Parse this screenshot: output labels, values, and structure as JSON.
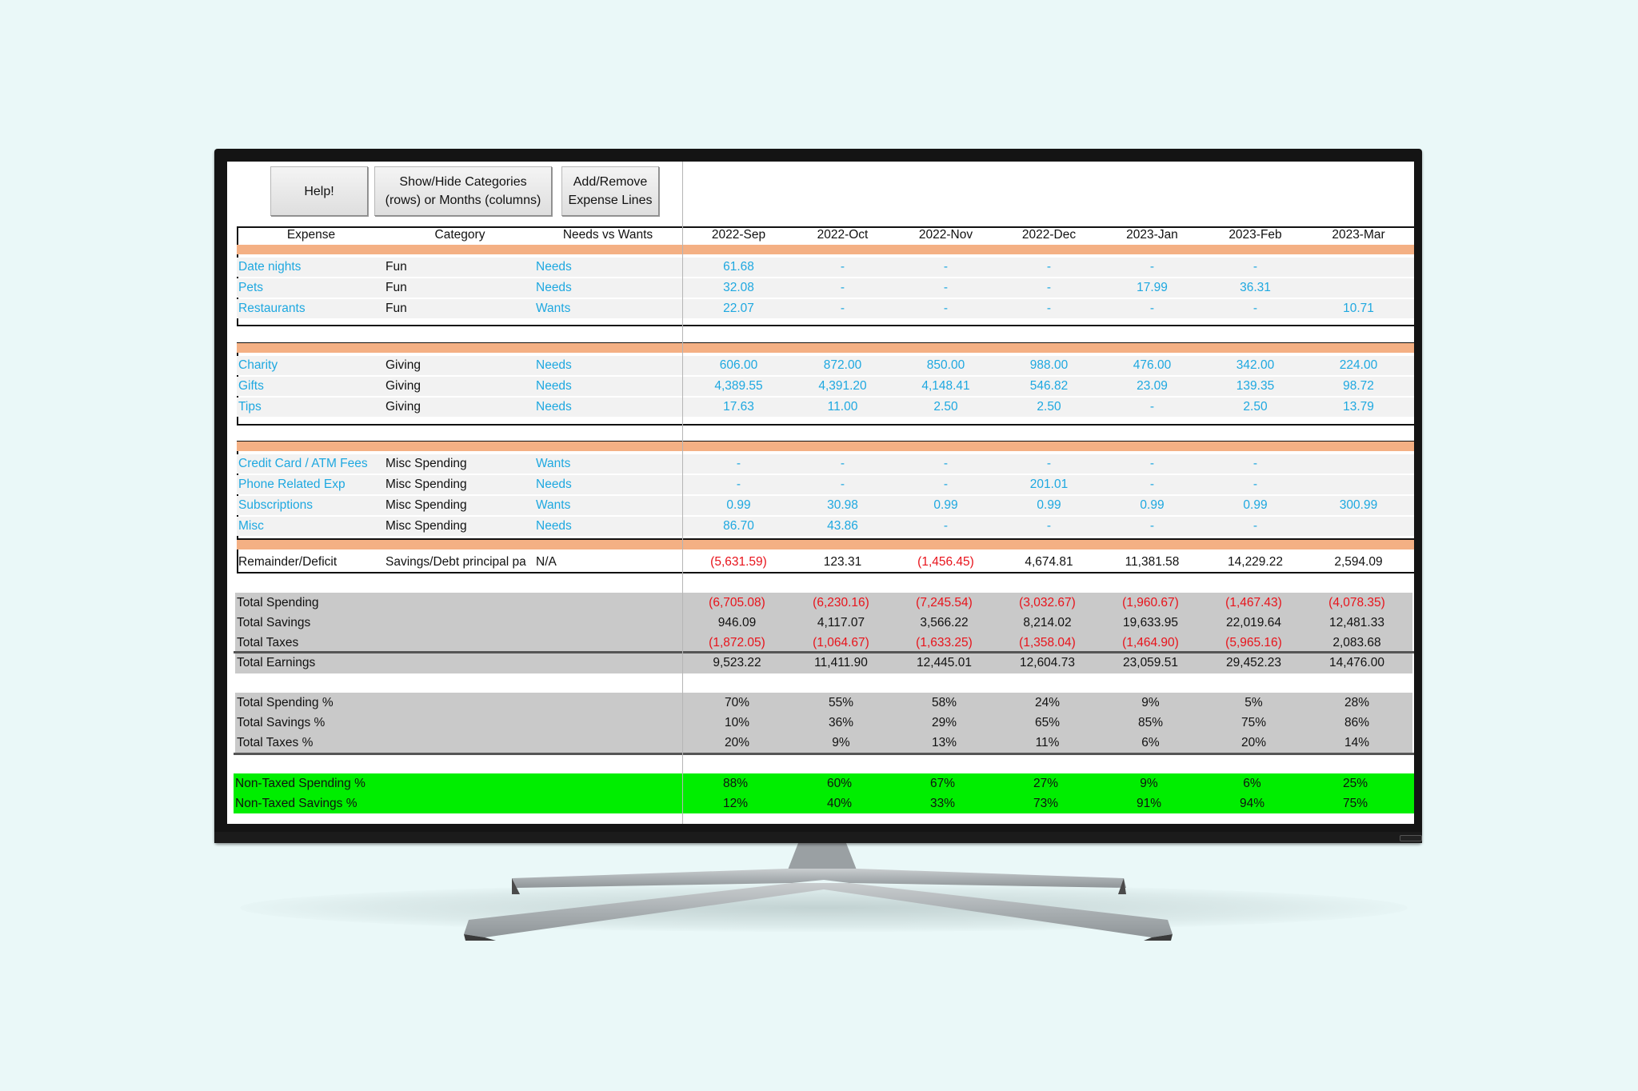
{
  "toolbar": {
    "help_label": "Help!",
    "show_hide_line1": "Show/Hide Categories",
    "show_hide_line2": "(rows) or Months (columns)",
    "add_remove_line1": "Add/Remove",
    "add_remove_line2": "Expense Lines"
  },
  "columns": {
    "expense": "Expense",
    "category": "Category",
    "needs_wants": "Needs vs Wants",
    "months": [
      "2022-Sep",
      "2022-Oct",
      "2022-Nov",
      "2022-Dec",
      "2023-Jan",
      "2023-Feb",
      "2023-Mar"
    ]
  },
  "groups": [
    {
      "rows": [
        {
          "expense": "Date nights",
          "category": "Fun",
          "type": "Needs",
          "values": [
            "61.68",
            "-",
            "-",
            "-",
            "-",
            "-",
            ""
          ]
        },
        {
          "expense": "Pets",
          "category": "Fun",
          "type": "Needs",
          "values": [
            "32.08",
            "-",
            "-",
            "-",
            "17.99",
            "36.31",
            ""
          ]
        },
        {
          "expense": "Restaurants",
          "category": "Fun",
          "type": "Wants",
          "values": [
            "22.07",
            "-",
            "-",
            "-",
            "-",
            "-",
            "10.71"
          ]
        }
      ]
    },
    {
      "rows": [
        {
          "expense": "Charity",
          "category": "Giving",
          "type": "Needs",
          "values": [
            "606.00",
            "872.00",
            "850.00",
            "988.00",
            "476.00",
            "342.00",
            "224.00"
          ]
        },
        {
          "expense": "Gifts",
          "category": "Giving",
          "type": "Needs",
          "values": [
            "4,389.55",
            "4,391.20",
            "4,148.41",
            "546.82",
            "23.09",
            "139.35",
            "98.72"
          ]
        },
        {
          "expense": "Tips",
          "category": "Giving",
          "type": "Needs",
          "values": [
            "17.63",
            "11.00",
            "2.50",
            "2.50",
            "-",
            "2.50",
            "13.79"
          ]
        }
      ]
    },
    {
      "rows": [
        {
          "expense": "Credit Card / ATM Fees",
          "category": "Misc Spending",
          "type": "Wants",
          "values": [
            "-",
            "-",
            "-",
            "-",
            "-",
            "-",
            ""
          ]
        },
        {
          "expense": "Phone Related Exp",
          "category": "Misc Spending",
          "type": "Needs",
          "values": [
            "-",
            "-",
            "-",
            "201.01",
            "-",
            "-",
            ""
          ]
        },
        {
          "expense": "Subscriptions",
          "category": "Misc Spending",
          "type": "Wants",
          "values": [
            "0.99",
            "30.98",
            "0.99",
            "0.99",
            "0.99",
            "0.99",
            "300.99"
          ]
        },
        {
          "expense": "Misc",
          "category": "Misc Spending",
          "type": "Needs",
          "values": [
            "86.70",
            "43.86",
            "-",
            "-",
            "-",
            "-",
            ""
          ]
        }
      ]
    }
  ],
  "remainder": {
    "expense": "Remainder/Deficit",
    "category": "Savings/Debt principal pa",
    "type": "N/A",
    "values": [
      {
        "v": "(5,631.59)",
        "neg": true
      },
      {
        "v": "123.31",
        "neg": false
      },
      {
        "v": "(1,456.45)",
        "neg": true
      },
      {
        "v": "4,674.81",
        "neg": false
      },
      {
        "v": "11,381.58",
        "neg": false
      },
      {
        "v": "14,229.22",
        "neg": false
      },
      {
        "v": "2,594.09",
        "neg": false
      }
    ]
  },
  "totals": [
    {
      "label": "Total Spending",
      "values": [
        {
          "v": "(6,705.08)",
          "neg": true
        },
        {
          "v": "(6,230.16)",
          "neg": true
        },
        {
          "v": "(7,245.54)",
          "neg": true
        },
        {
          "v": "(3,032.67)",
          "neg": true
        },
        {
          "v": "(1,960.67)",
          "neg": true
        },
        {
          "v": "(1,467.43)",
          "neg": true
        },
        {
          "v": "(4,078.35)",
          "neg": true
        }
      ]
    },
    {
      "label": "Total Savings",
      "values": [
        {
          "v": "946.09",
          "neg": false
        },
        {
          "v": "4,117.07",
          "neg": false
        },
        {
          "v": "3,566.22",
          "neg": false
        },
        {
          "v": "8,214.02",
          "neg": false
        },
        {
          "v": "19,633.95",
          "neg": false
        },
        {
          "v": "22,019.64",
          "neg": false
        },
        {
          "v": "12,481.33",
          "neg": false
        }
      ]
    },
    {
      "label": "Total Taxes",
      "values": [
        {
          "v": "(1,872.05)",
          "neg": true
        },
        {
          "v": "(1,064.67)",
          "neg": true
        },
        {
          "v": "(1,633.25)",
          "neg": true
        },
        {
          "v": "(1,358.04)",
          "neg": true
        },
        {
          "v": "(1,464.90)",
          "neg": true
        },
        {
          "v": "(5,965.16)",
          "neg": true
        },
        {
          "v": "2,083.68",
          "neg": false
        }
      ]
    },
    {
      "label": "Total Earnings",
      "values": [
        {
          "v": "9,523.22",
          "neg": false
        },
        {
          "v": "11,411.90",
          "neg": false
        },
        {
          "v": "12,445.01",
          "neg": false
        },
        {
          "v": "12,604.73",
          "neg": false
        },
        {
          "v": "23,059.51",
          "neg": false
        },
        {
          "v": "29,452.23",
          "neg": false
        },
        {
          "v": "14,476.00",
          "neg": false
        }
      ]
    }
  ],
  "percents": [
    {
      "label": "Total Spending %",
      "values": [
        "70%",
        "55%",
        "58%",
        "24%",
        "9%",
        "5%",
        "28%"
      ]
    },
    {
      "label": "Total Savings %",
      "values": [
        "10%",
        "36%",
        "29%",
        "65%",
        "85%",
        "75%",
        "86%"
      ]
    },
    {
      "label": "Total Taxes %",
      "values": [
        "20%",
        "9%",
        "13%",
        "11%",
        "6%",
        "20%",
        "14%"
      ]
    }
  ],
  "non_taxed": [
    {
      "label": "Non-Taxed Spending %",
      "values": [
        "88%",
        "60%",
        "67%",
        "27%",
        "9%",
        "6%",
        "25%"
      ]
    },
    {
      "label": "Non-Taxed Savings %",
      "values": [
        "12%",
        "40%",
        "33%",
        "73%",
        "91%",
        "94%",
        "75%"
      ]
    }
  ],
  "colors": {
    "accent_blue": "#1ea8e0",
    "negative_red": "#e8131b",
    "band_orange": "#f4b084",
    "summary_gray": "#c9c9c9",
    "highlight_green": "#00ee00"
  }
}
